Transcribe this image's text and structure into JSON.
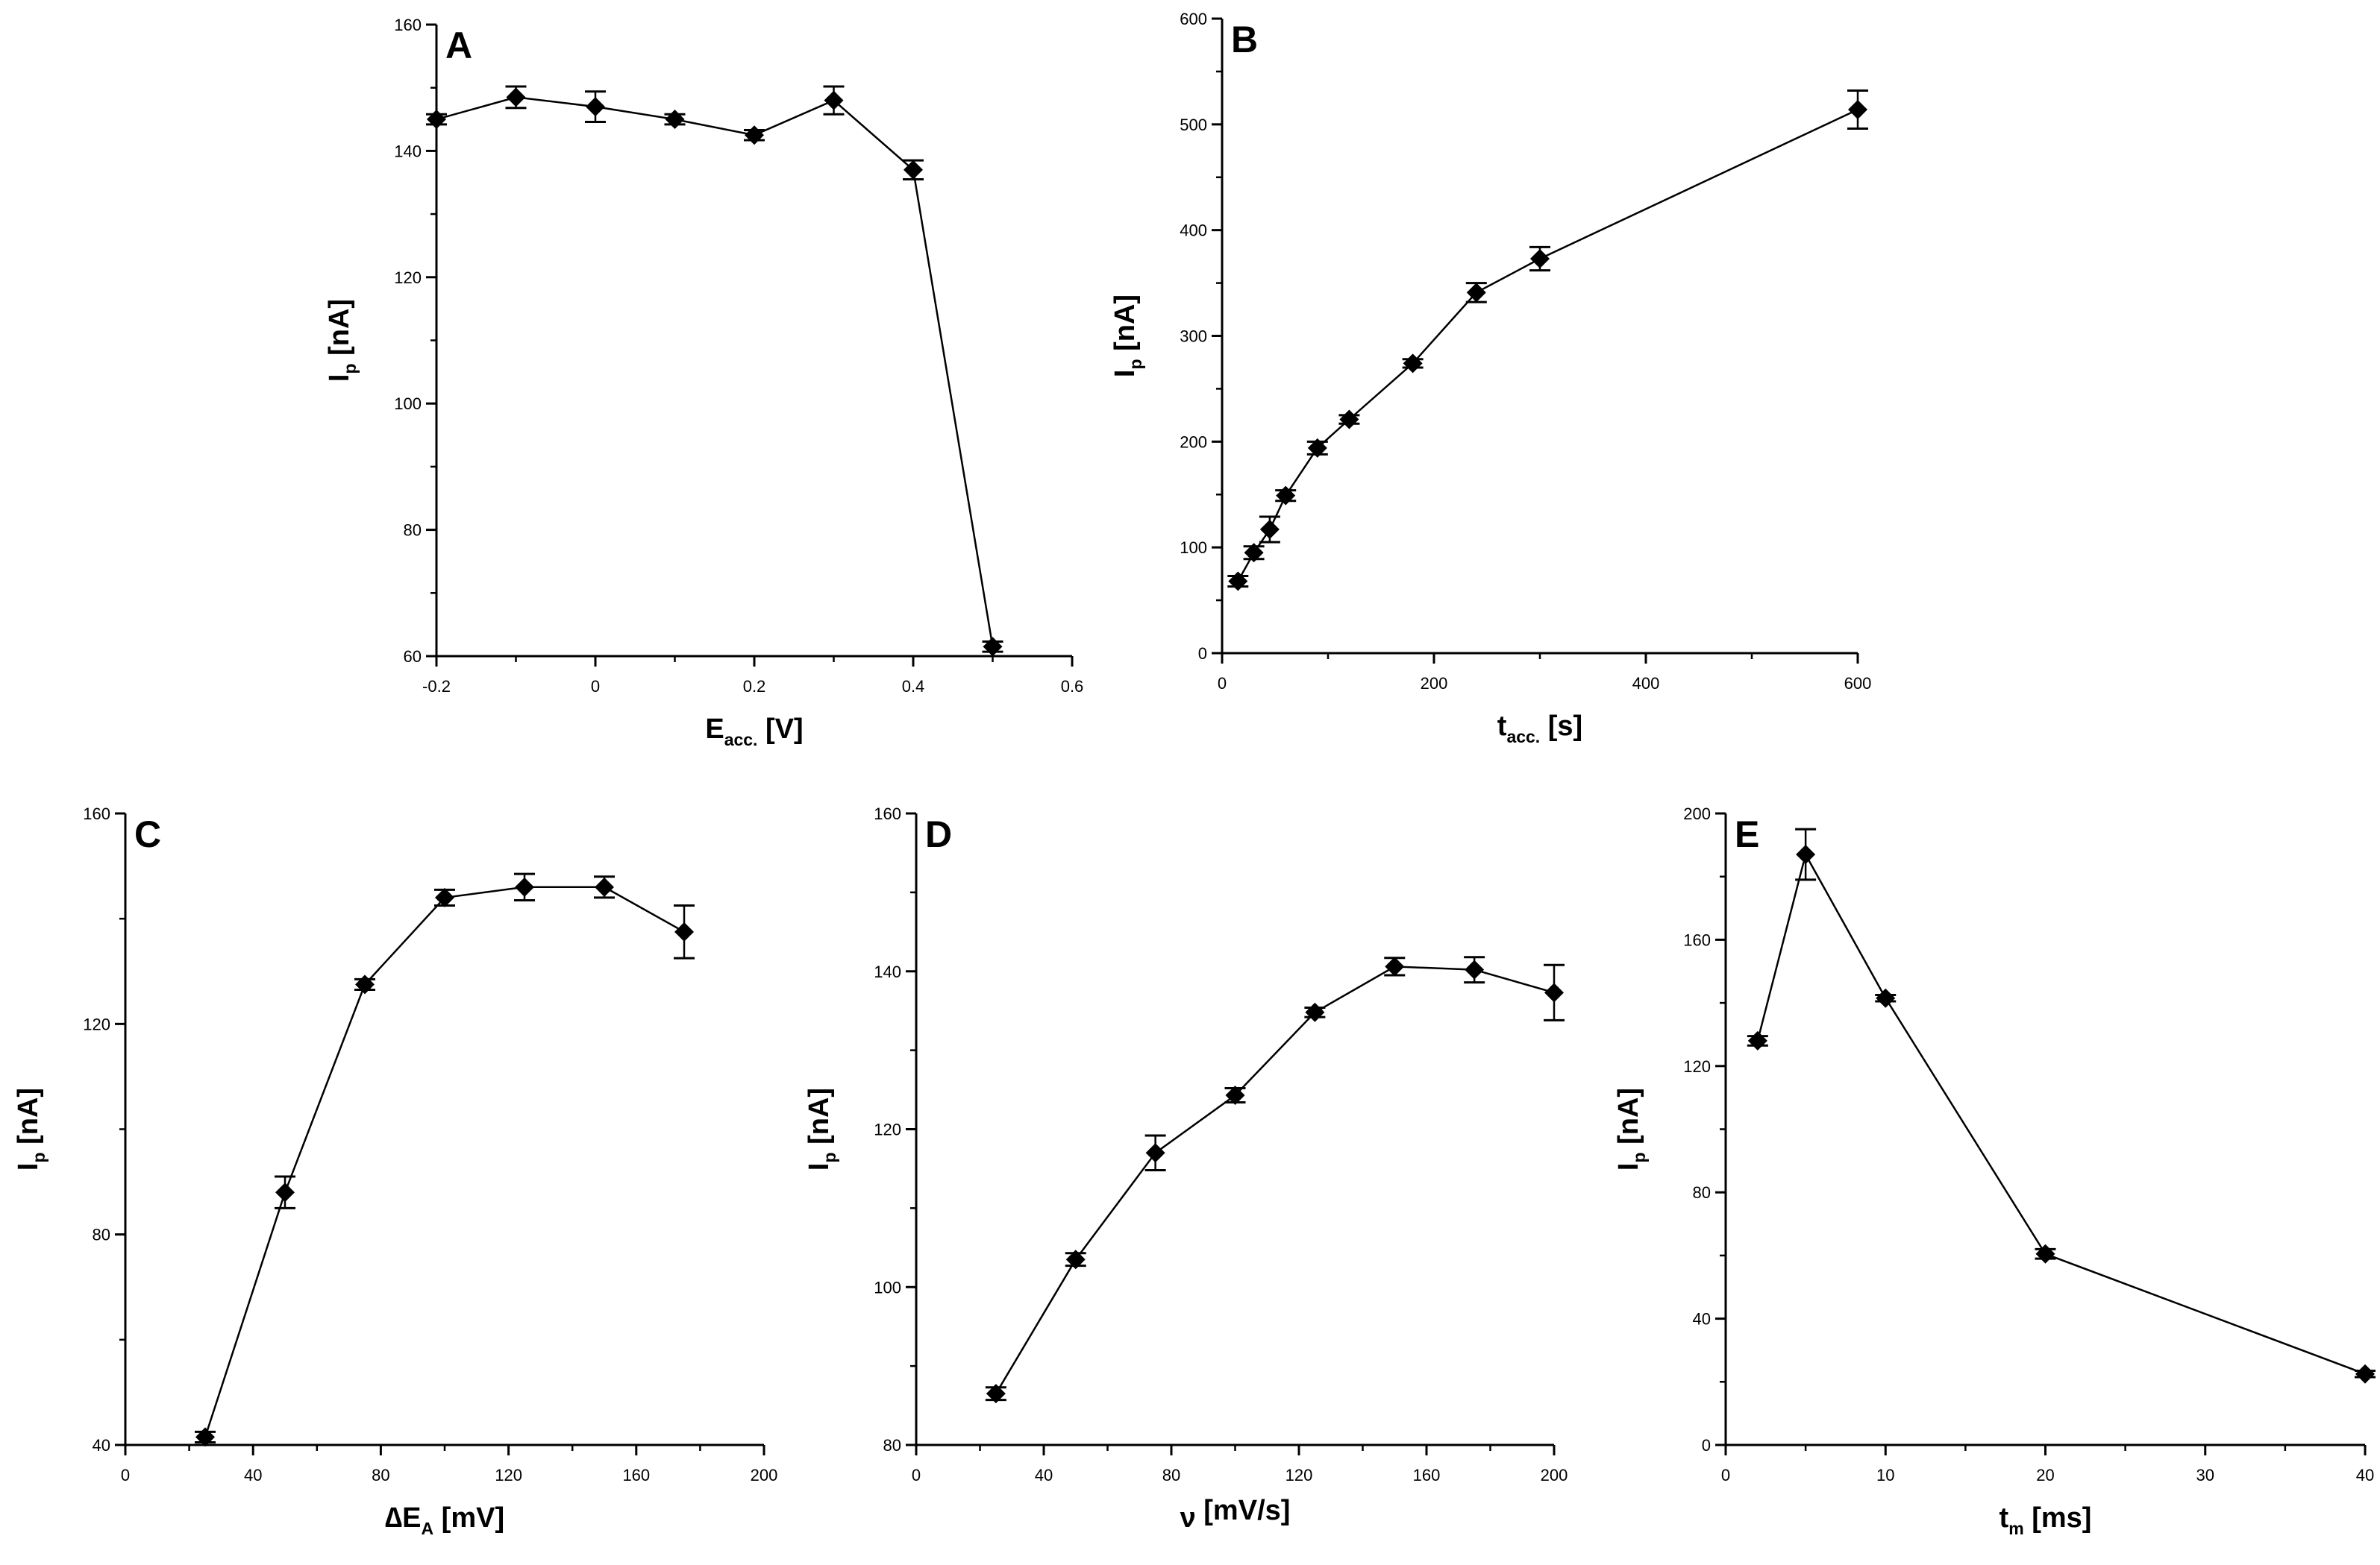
{
  "figure": {
    "panels": [
      {
        "letter": "A",
        "ylabel": {
          "main": "I",
          "sub": "p",
          "unit": " [nA]"
        },
        "xlabel": {
          "pre": "",
          "main": "E",
          "sub": "acc.",
          "unit": " [V]"
        }
      },
      {
        "letter": "B",
        "ylabel": {
          "main": "I",
          "sub": "p",
          "unit": " [nA]"
        },
        "xlabel": {
          "pre": "",
          "main": "t",
          "sub": "acc.",
          "unit": " [s]"
        }
      },
      {
        "letter": "C",
        "ylabel": {
          "main": "I",
          "sub": "p",
          "unit": " [nA]"
        },
        "xlabel": {
          "pre": "∆",
          "main": "E",
          "sub": "A",
          "unit": " [mV]"
        }
      },
      {
        "letter": "D",
        "ylabel": {
          "main": "I",
          "sub": "p",
          "unit": " [nA]"
        },
        "xlabel": {
          "pre": "",
          "main": "ν",
          "sub": "",
          "unit": " [mV/s]"
        }
      },
      {
        "letter": "E",
        "ylabel": {
          "main": "I",
          "sub": "p",
          "unit": " [nA]"
        },
        "xlabel": {
          "pre": "",
          "main": "t",
          "sub": "m",
          "unit": " [ms]"
        }
      }
    ]
  },
  "chart_data": [
    {
      "type": "line",
      "panel": "A",
      "title": "",
      "xlabel": "Eacc. [V]",
      "ylabel": "Ip [nA]",
      "xlim": [
        -0.2,
        0.6
      ],
      "ylim": [
        60,
        160
      ],
      "xticks": [
        -0.2,
        0,
        0.2,
        0.4,
        0.6
      ],
      "xtick_labels": [
        "-0.2",
        "0",
        "0.2",
        "0.4",
        "0.6"
      ],
      "yticks": [
        60,
        80,
        100,
        120,
        140,
        160
      ],
      "ytick_labels": [
        "60",
        "80",
        "100",
        "120",
        "140",
        "160"
      ],
      "series": [
        {
          "name": "Ip",
          "x": [
            -0.2,
            -0.1,
            0,
            0.1,
            0.2,
            0.3,
            0.4,
            0.5
          ],
          "y": [
            145,
            148.5,
            147,
            145,
            142.5,
            148,
            137,
            61.5
          ],
          "err": [
            0.8,
            1.7,
            2.4,
            0.8,
            0.8,
            2.2,
            1.5,
            0.8
          ]
        }
      ]
    },
    {
      "type": "line",
      "panel": "B",
      "title": "",
      "xlabel": "tacc. [s]",
      "ylabel": "Ip [nA]",
      "xlim": [
        0,
        600
      ],
      "ylim": [
        0,
        600
      ],
      "xticks": [
        0,
        200,
        400,
        600
      ],
      "xtick_labels": [
        "0",
        "200",
        "400",
        "600"
      ],
      "yticks": [
        0,
        100,
        200,
        300,
        400,
        500,
        600
      ],
      "ytick_labels": [
        "0",
        "100",
        "200",
        "300",
        "400",
        "500",
        "600"
      ],
      "series": [
        {
          "name": "Ip",
          "x": [
            15,
            30,
            45,
            60,
            90,
            120,
            180,
            240,
            300,
            600
          ],
          "y": [
            68,
            95,
            117,
            149,
            194,
            221,
            274,
            341,
            373,
            514
          ],
          "err": [
            5,
            6,
            12,
            5,
            6,
            4,
            4,
            9,
            11,
            18
          ]
        }
      ]
    },
    {
      "type": "line",
      "panel": "C",
      "title": "",
      "xlabel": "∆EA [mV]",
      "ylabel": "Ip [nA]",
      "xlim": [
        0,
        200
      ],
      "ylim": [
        40,
        160
      ],
      "xticks": [
        0,
        40,
        80,
        120,
        160,
        200
      ],
      "xtick_labels": [
        "0",
        "40",
        "80",
        "120",
        "160",
        "200"
      ],
      "yticks": [
        40,
        80,
        120,
        160
      ],
      "ytick_labels": [
        "40",
        "80",
        "120",
        "160"
      ],
      "series": [
        {
          "name": "Ip",
          "x": [
            25,
            50,
            75,
            100,
            125,
            150,
            175
          ],
          "y": [
            41.5,
            88,
            127.5,
            144,
            146,
            146,
            137.5
          ],
          "err": [
            1,
            3,
            1,
            1.5,
            2.5,
            2,
            5
          ]
        }
      ]
    },
    {
      "type": "line",
      "panel": "D",
      "title": "",
      "xlabel": "ν [mV/s]",
      "ylabel": "Ip [nA]",
      "xlim": [
        0,
        200
      ],
      "ylim": [
        80,
        160
      ],
      "xticks": [
        0,
        40,
        80,
        120,
        160,
        200
      ],
      "xtick_labels": [
        "0",
        "40",
        "80",
        "120",
        "160",
        "200"
      ],
      "yticks": [
        80,
        100,
        120,
        140,
        160
      ],
      "ytick_labels": [
        "80",
        "100",
        "120",
        "140",
        "160"
      ],
      "series": [
        {
          "name": "Ip",
          "x": [
            25,
            50,
            75,
            100,
            125,
            150,
            175,
            200
          ],
          "y": [
            86.5,
            103.5,
            117,
            124.3,
            134.8,
            140.6,
            140.2,
            137.3
          ],
          "err": [
            0.8,
            0.8,
            2.2,
            0.9,
            0.6,
            1.1,
            1.6,
            3.5
          ]
        }
      ]
    },
    {
      "type": "line",
      "panel": "E",
      "title": "",
      "xlabel": "tm [ms]",
      "ylabel": "Ip [nA]",
      "xlim": [
        0,
        40
      ],
      "ylim": [
        0,
        200
      ],
      "xticks": [
        0,
        10,
        20,
        30,
        40
      ],
      "xtick_labels": [
        "0",
        "10",
        "20",
        "30",
        "40"
      ],
      "yticks": [
        0,
        40,
        80,
        120,
        160,
        200
      ],
      "ytick_labels": [
        "0",
        "40",
        "80",
        "120",
        "160",
        "200"
      ],
      "series": [
        {
          "name": "Ip",
          "x": [
            2,
            5,
            10,
            20,
            40
          ],
          "y": [
            128,
            187,
            141.5,
            60.5,
            22.5
          ],
          "err": [
            1.5,
            8,
            1,
            1.5,
            1
          ]
        }
      ]
    }
  ]
}
